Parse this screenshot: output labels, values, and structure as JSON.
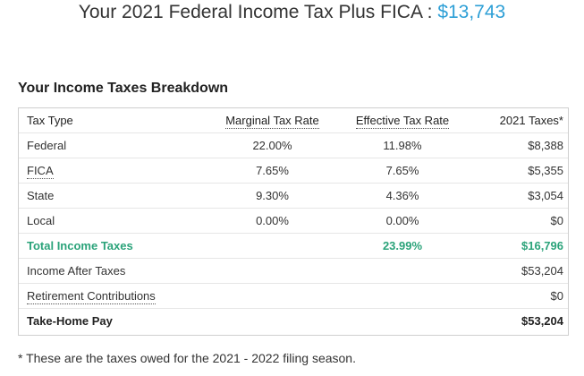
{
  "headline": {
    "prefix": "Your 2021 Federal Income Tax Plus FICA :",
    "amount": "$13,743"
  },
  "section_title": "Your Income Taxes Breakdown",
  "table": {
    "headers": {
      "tax_type": "Tax Type",
      "marginal_rate": "Marginal Tax Rate",
      "effective_rate": "Effective Tax Rate",
      "taxes": "2021 Taxes*"
    },
    "rows": [
      {
        "type": "Federal",
        "marginal": "22.00%",
        "effective": "11.98%",
        "taxes": "$8,388"
      },
      {
        "type": "FICA",
        "marginal": "7.65%",
        "effective": "7.65%",
        "taxes": "$5,355"
      },
      {
        "type": "State",
        "marginal": "9.30%",
        "effective": "4.36%",
        "taxes": "$3,054"
      },
      {
        "type": "Local",
        "marginal": "0.00%",
        "effective": "0.00%",
        "taxes": "$0"
      }
    ],
    "total": {
      "label": "Total Income Taxes",
      "effective": "23.99%",
      "taxes": "$16,796"
    },
    "after_taxes": {
      "label": "Income After Taxes",
      "value": "$53,204"
    },
    "retirement": {
      "label": "Retirement Contributions",
      "value": "$0"
    },
    "take_home": {
      "label": "Take-Home Pay",
      "value": "$53,204"
    }
  },
  "footnote": "* These are the taxes owed for the 2021 - 2022 filing season.",
  "colors": {
    "accent_blue": "#2d9fd6",
    "total_green": "#2ba37a"
  }
}
